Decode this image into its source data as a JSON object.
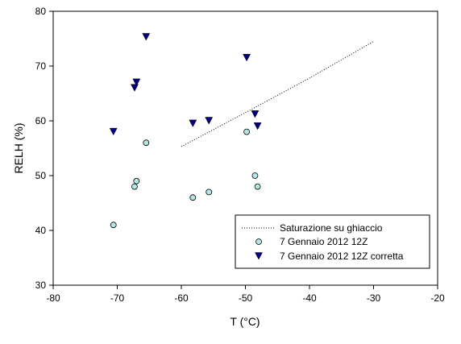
{
  "chart_data": {
    "type": "scatter",
    "xlabel": "T (°C)",
    "ylabel": "RELH (%)",
    "xlim": [
      -80,
      -20
    ],
    "ylim": [
      30,
      80
    ],
    "xticks": [
      -80,
      -70,
      -60,
      -50,
      -40,
      -30,
      -20
    ],
    "yticks": [
      30,
      40,
      50,
      60,
      70,
      80
    ],
    "grid": false,
    "legend_position": "bottom-right",
    "series": [
      {
        "name": "Saturazione su ghiaccio",
        "kind": "line",
        "style": "dotted",
        "color": "#000000",
        "points": [
          [
            -60,
            55.3
          ],
          [
            -50,
            61.5
          ],
          [
            -40,
            67.8
          ],
          [
            -30,
            74.5
          ]
        ]
      },
      {
        "name": "7 Gennaio 2012 12Z",
        "kind": "marker",
        "marker": "circle",
        "color": "#b3e6e6",
        "stroke": "#000000",
        "points": [
          [
            -70.6,
            41
          ],
          [
            -67.3,
            48
          ],
          [
            -67,
            49
          ],
          [
            -65.5,
            56
          ],
          [
            -58.2,
            46
          ],
          [
            -55.7,
            47
          ],
          [
            -49.8,
            58
          ],
          [
            -48.5,
            50
          ],
          [
            -48.1,
            48
          ]
        ]
      },
      {
        "name": "7 Gennaio 2012 12Z corretta",
        "kind": "marker",
        "marker": "triangle-down",
        "color": "#000080",
        "points": [
          [
            -70.6,
            58
          ],
          [
            -67.3,
            66
          ],
          [
            -67,
            67
          ],
          [
            -65.5,
            75.3
          ],
          [
            -58.2,
            59.5
          ],
          [
            -55.7,
            60
          ],
          [
            -49.8,
            71.5
          ],
          [
            -48.5,
            61.2
          ],
          [
            -48.1,
            59
          ]
        ]
      }
    ]
  }
}
